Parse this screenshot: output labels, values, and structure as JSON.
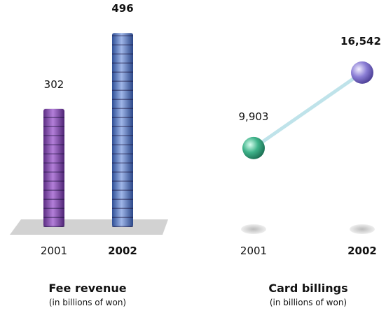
{
  "chart_data": [
    {
      "type": "bar",
      "title": "Fee revenue",
      "subtitle": "(in billions of won)",
      "categories": [
        "2001",
        "2002"
      ],
      "values": [
        302,
        496
      ],
      "colors": [
        "#8a4db3",
        "#5b7fc4"
      ]
    },
    {
      "type": "line",
      "title": "Card billings",
      "subtitle": "(in billions of won)",
      "categories": [
        "2001",
        "2002"
      ],
      "values": [
        9903,
        16542
      ],
      "value_labels": [
        "9,903",
        "16,542"
      ],
      "colors": [
        "#3fb38a",
        "#8c7fd6"
      ],
      "line_color": "#bfe3ea"
    }
  ]
}
